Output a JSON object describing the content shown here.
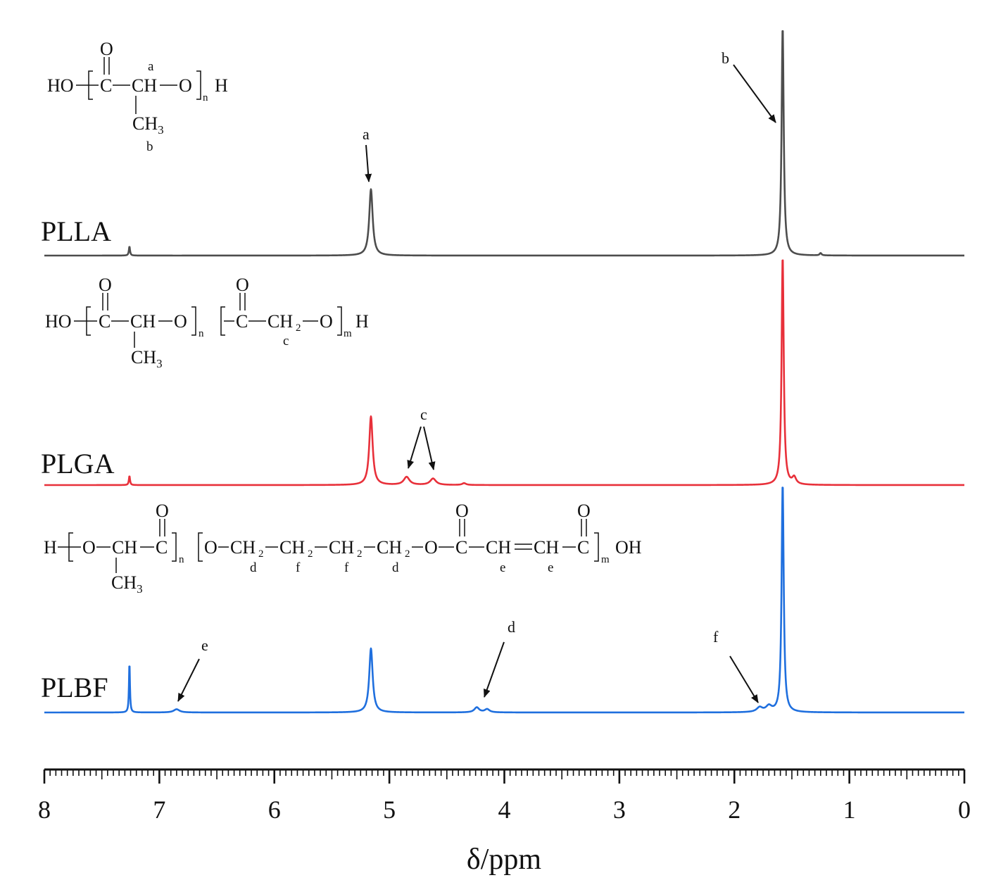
{
  "chart_data": {
    "type": "line",
    "xlabel": "δ/ppm",
    "ylabel": "",
    "xlim": [
      8,
      0
    ],
    "x_reversed": true,
    "xticks": [
      8,
      7,
      6,
      5,
      4,
      3,
      2,
      1,
      0
    ],
    "tick_labels": [
      "8",
      "7",
      "6",
      "5",
      "4",
      "3",
      "2",
      "1",
      "0"
    ],
    "grid": false,
    "legend": "none",
    "series": [
      {
        "name": "PLLA",
        "color": "#4d4d4d",
        "peaks": [
          {
            "ppm": 7.26,
            "height": 0.04,
            "width": 0.006
          },
          {
            "ppm": 5.16,
            "height": 0.29,
            "width": 0.018
          },
          {
            "ppm": 1.58,
            "height": 1.0,
            "width": 0.011
          },
          {
            "ppm": 1.25,
            "height": 0.01,
            "width": 0.01
          }
        ],
        "annotations": [
          {
            "label": "a",
            "ppm": 5.16
          },
          {
            "label": "b",
            "ppm": 1.58
          }
        ],
        "structure": {
          "head": "HO",
          "units": [
            {
              "text": "C",
              "top": "O",
              "sub": ""
            },
            {
              "text": "CH",
              "top": "a",
              "sub": ""
            },
            {
              "text": "O",
              "sub": ""
            }
          ],
          "repeat": "n",
          "tail": "H",
          "side": "CH3",
          "side_label": "b"
        }
      },
      {
        "name": "PLGA",
        "color": "#e8303a",
        "peaks": [
          {
            "ppm": 7.26,
            "height": 0.04,
            "width": 0.006
          },
          {
            "ppm": 5.16,
            "height": 0.3,
            "width": 0.018
          },
          {
            "ppm": 4.85,
            "height": 0.035,
            "width": 0.03
          },
          {
            "ppm": 4.62,
            "height": 0.028,
            "width": 0.03
          },
          {
            "ppm": 4.35,
            "height": 0.008,
            "width": 0.02
          },
          {
            "ppm": 1.58,
            "height": 1.0,
            "width": 0.011
          },
          {
            "ppm": 1.48,
            "height": 0.03,
            "width": 0.02
          }
        ],
        "annotations": [
          {
            "label": "c",
            "ppm": 4.85
          },
          {
            "label": "c",
            "ppm": 4.62
          }
        ]
      },
      {
        "name": "PLBF",
        "color": "#1f6fde",
        "peaks": [
          {
            "ppm": 7.26,
            "height": 0.22,
            "width": 0.005
          },
          {
            "ppm": 6.85,
            "height": 0.014,
            "width": 0.03
          },
          {
            "ppm": 5.16,
            "height": 0.28,
            "width": 0.018
          },
          {
            "ppm": 4.24,
            "height": 0.022,
            "width": 0.025
          },
          {
            "ppm": 4.15,
            "height": 0.014,
            "width": 0.025
          },
          {
            "ppm": 1.78,
            "height": 0.02,
            "width": 0.03
          },
          {
            "ppm": 1.7,
            "height": 0.025,
            "width": 0.03
          },
          {
            "ppm": 1.58,
            "height": 1.0,
            "width": 0.011
          }
        ],
        "annotations": [
          {
            "label": "e",
            "ppm": 6.85
          },
          {
            "label": "d",
            "ppm": 4.2
          },
          {
            "label": "f",
            "ppm": 1.75
          }
        ]
      }
    ],
    "structures": {
      "plla": {
        "head": "HO",
        "n": "n",
        "tail": "H",
        "side": "CH3",
        "o_label": "O",
        "c_label": "C",
        "ch_label": "CH",
        "o2_label": "O",
        "label_a": "a",
        "label_b": "b"
      },
      "plga": {
        "head": "HO",
        "n": "n",
        "m": "m",
        "tail": "H",
        "side": "CH3",
        "c1": "C",
        "ch": "CH",
        "o1": "O",
        "c2": "C",
        "ch2": "CH",
        "sub2": "2",
        "o2": "O",
        "o_top": "O",
        "label_c": "c"
      },
      "plbf": {
        "head": "H",
        "n": "n",
        "m": "m",
        "tail": "OH",
        "side": "CH3",
        "o": "O",
        "ch": "CH",
        "c": "C",
        "ch2": "CH",
        "sub2": "2",
        "ch_eq": "CH",
        "o_top": "O",
        "label_d": "d",
        "label_e": "e",
        "label_f": "f"
      }
    }
  }
}
